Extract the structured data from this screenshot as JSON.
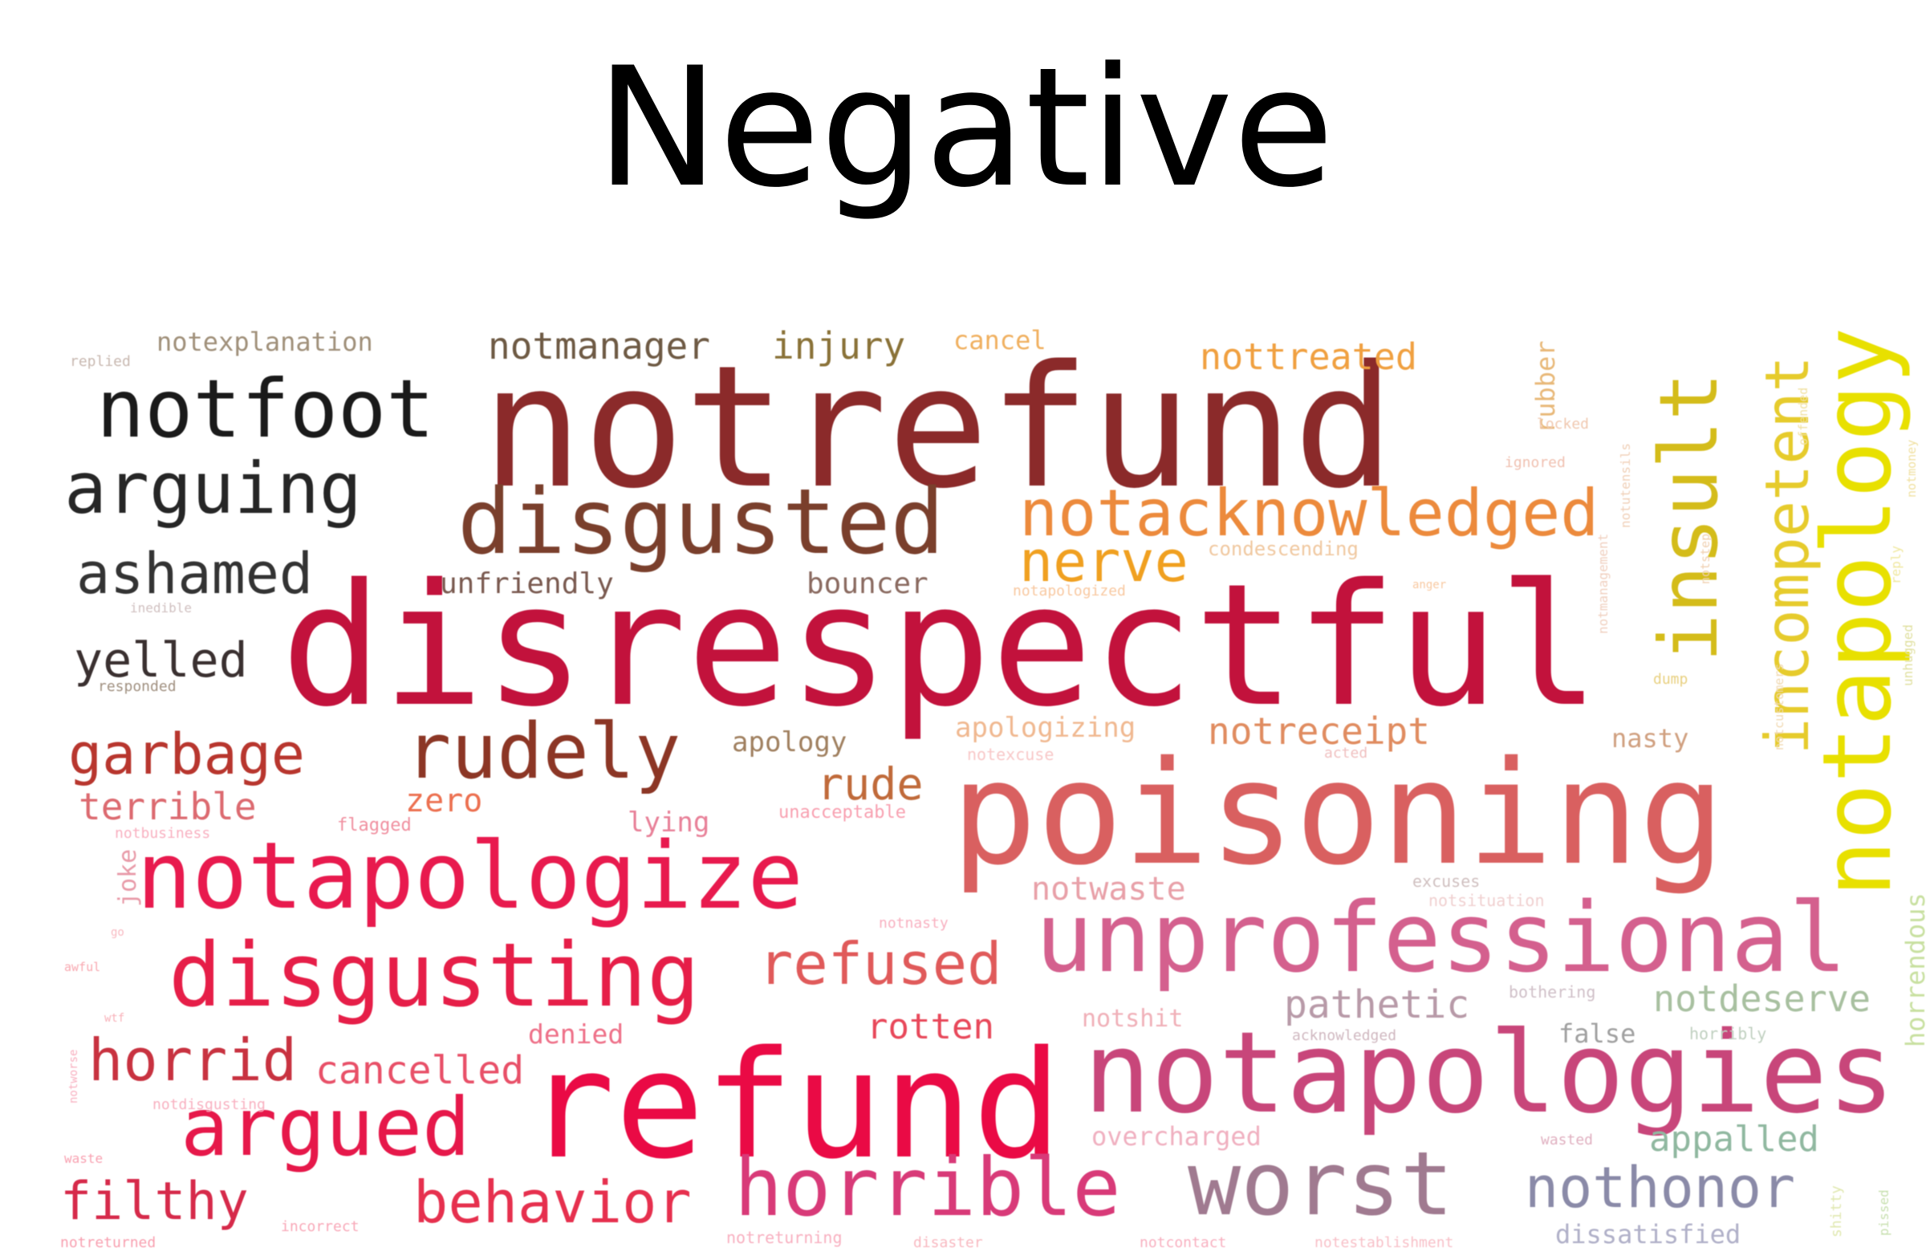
{
  "title": "Negative",
  "words": [
    {
      "text": "notrefund",
      "color": "#8b2a2a"
    },
    {
      "text": "disrespectful",
      "color": "#c2123c"
    },
    {
      "text": "poisoning",
      "color": "#d96060"
    },
    {
      "text": "refund",
      "color": "#ea0a45"
    },
    {
      "text": "notapologies",
      "color": "#c8467a"
    },
    {
      "text": "unprofessional",
      "color": "#d4608e"
    },
    {
      "text": "notapologize",
      "color": "#e81a4e"
    },
    {
      "text": "disgusting",
      "color": "#e61e48"
    },
    {
      "text": "horrible",
      "color": "#d83a78"
    },
    {
      "text": "worst",
      "color": "#a07a90"
    },
    {
      "text": "disgusted",
      "color": "#7a3f2c"
    },
    {
      "text": "notfoot",
      "color": "#1a1a1a"
    },
    {
      "text": "arguing",
      "color": "#262626"
    },
    {
      "text": "ashamed",
      "color": "#333333"
    },
    {
      "text": "argued",
      "color": "#e6184a"
    },
    {
      "text": "rudely",
      "color": "#8c3625"
    },
    {
      "text": "notapology",
      "color": "#e8e000"
    },
    {
      "text": "insult",
      "color": "#d4bc1a"
    },
    {
      "text": "incompetent",
      "color": "#e6cb2c"
    },
    {
      "text": "notacknowledged",
      "color": "#ec8a3c"
    },
    {
      "text": "nerve",
      "color": "#f0a020"
    },
    {
      "text": "garbage",
      "color": "#b8362e"
    },
    {
      "text": "horrid",
      "color": "#c83240"
    },
    {
      "text": "filthy",
      "color": "#d62a4a"
    },
    {
      "text": "behavior",
      "color": "#e6304e"
    },
    {
      "text": "nothonor",
      "color": "#8a8aa8"
    },
    {
      "text": "refused",
      "color": "#e05a5a"
    },
    {
      "text": "yelled",
      "color": "#3a3030"
    },
    {
      "text": "notmanager",
      "color": "#6e5a44"
    },
    {
      "text": "injury",
      "color": "#8a7238"
    },
    {
      "text": "nottreated",
      "color": "#f0a040"
    },
    {
      "text": "rude",
      "color": "#c06a3a"
    },
    {
      "text": "cancelled",
      "color": "#e85068"
    },
    {
      "text": "notreceipt",
      "color": "#e08c60"
    },
    {
      "text": "notwaste",
      "color": "#e8a0a8"
    },
    {
      "text": "pathetic",
      "color": "#b89aa8"
    },
    {
      "text": "notdeserve",
      "color": "#a8c0a0"
    },
    {
      "text": "appalled",
      "color": "#90b8a0"
    },
    {
      "text": "rotten",
      "color": "#e8485a"
    },
    {
      "text": "terrible",
      "color": "#dc6a70"
    },
    {
      "text": "zero",
      "color": "#ec7050"
    },
    {
      "text": "unfriendly",
      "color": "#7a5a50"
    },
    {
      "text": "bouncer",
      "color": "#8a6a60"
    },
    {
      "text": "apology",
      "color": "#a08060"
    },
    {
      "text": "notexplanation",
      "color": "#a0907a"
    },
    {
      "text": "cancel",
      "color": "#f0b060"
    },
    {
      "text": "apologizing",
      "color": "#f0b890"
    },
    {
      "text": "lying",
      "color": "#e88098"
    },
    {
      "text": "denied",
      "color": "#ee7088"
    },
    {
      "text": "notshit",
      "color": "#f0b0b8"
    },
    {
      "text": "overcharged",
      "color": "#f0b0c0"
    },
    {
      "text": "dissatisfied",
      "color": "#b0b0c8"
    },
    {
      "text": "false",
      "color": "#a0a0a0"
    },
    {
      "text": "nasty",
      "color": "#d0a080"
    },
    {
      "text": "horrendous",
      "color": "#c8e0a0"
    },
    {
      "text": "rubber",
      "color": "#e8b878"
    },
    {
      "text": "joke",
      "color": "#e89aa8"
    },
    {
      "text": "flagged",
      "color": "#f090a0"
    },
    {
      "text": "condescending",
      "color": "#f0c8a0"
    },
    {
      "text": "unacceptable",
      "color": "#f8a0b0"
    },
    {
      "text": "notexcuse",
      "color": "#f8c8c8"
    },
    {
      "text": "replied",
      "color": "#c8b8b0"
    },
    {
      "text": "inedible",
      "color": "#d0c0c0"
    },
    {
      "text": "responded",
      "color": "#a09080"
    },
    {
      "text": "notbusiness",
      "color": "#f8b0c0"
    },
    {
      "text": "notnasty",
      "color": "#f8b0c0"
    },
    {
      "text": "notsituation",
      "color": "#f0d0d0"
    },
    {
      "text": "excuses",
      "color": "#d0c0c0"
    },
    {
      "text": "acknowledged",
      "color": "#d0b8c0"
    },
    {
      "text": "bothering",
      "color": "#d0c0c8"
    },
    {
      "text": "horribly",
      "color": "#c0d0c0"
    },
    {
      "text": "wasted",
      "color": "#e0b0c0"
    },
    {
      "text": "notapologized",
      "color": "#f8c8a0"
    },
    {
      "text": "acted",
      "color": "#f0c0c0"
    },
    {
      "text": "dump",
      "color": "#e8d080"
    },
    {
      "text": "locked",
      "color": "#f0c8b0"
    },
    {
      "text": "ignored",
      "color": "#f0c0b0"
    },
    {
      "text": "notmanagement",
      "color": "#f0d0c0"
    },
    {
      "text": "notutensils",
      "color": "#f0d0b8"
    },
    {
      "text": "notstep",
      "color": "#f0d0b0"
    },
    {
      "text": "notcustomers",
      "color": "#f0d8b0"
    },
    {
      "text": "offended",
      "color": "#f0e0a0"
    },
    {
      "text": "notmoney",
      "color": "#f0e0a0"
    },
    {
      "text": "reply",
      "color": "#f0e8a0"
    },
    {
      "text": "unhugged",
      "color": "#e0e0a0"
    },
    {
      "text": "anger",
      "color": "#f8c8a0"
    },
    {
      "text": "awful",
      "color": "#f8a8b0"
    },
    {
      "text": "wtf",
      "color": "#f8b0b8"
    },
    {
      "text": "go",
      "color": "#f8b8c0"
    },
    {
      "text": "notworse",
      "color": "#f8b0c0"
    },
    {
      "text": "notdisgusting",
      "color": "#f8b0c0"
    },
    {
      "text": "waste",
      "color": "#f8a0b0"
    },
    {
      "text": "incorrect",
      "color": "#f8a8b8"
    },
    {
      "text": "notreturned",
      "color": "#f8a0b0"
    },
    {
      "text": "notreturning",
      "color": "#f8b0c0"
    },
    {
      "text": "disaster",
      "color": "#f8b8c0"
    },
    {
      "text": "notcontact",
      "color": "#f8b0c0"
    },
    {
      "text": "notestablishment",
      "color": "#f8c0c8"
    },
    {
      "text": "pissed",
      "color": "#c8e0b0"
    },
    {
      "text": "shitty",
      "color": "#e0e8b0"
    }
  ]
}
